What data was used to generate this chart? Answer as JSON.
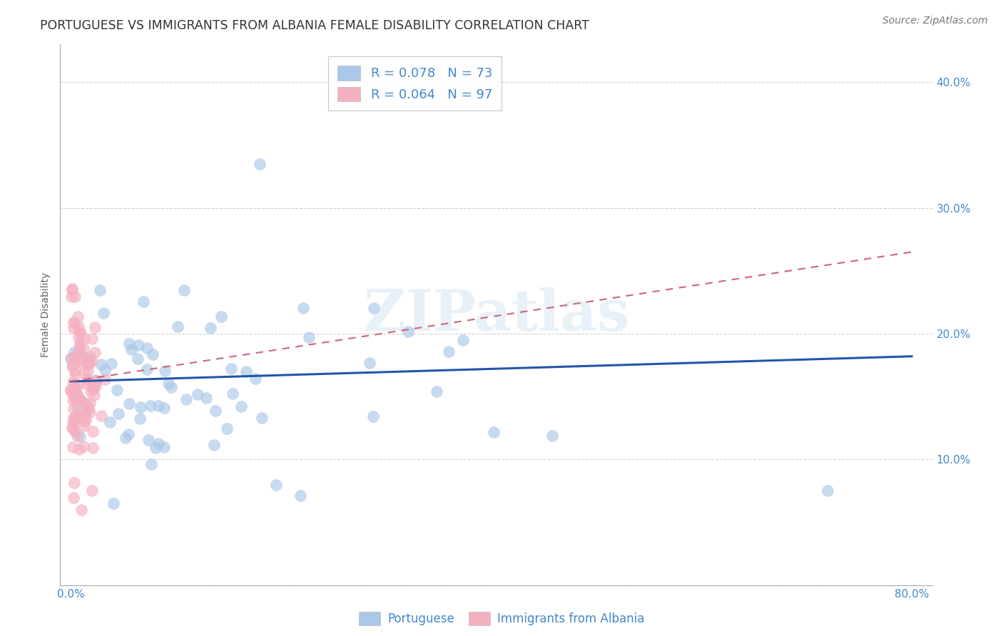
{
  "title": "PORTUGUESE VS IMMIGRANTS FROM ALBANIA FEMALE DISABILITY CORRELATION CHART",
  "source": "Source: ZipAtlas.com",
  "ylabel": "Female Disability",
  "watermark": "ZIPatlas",
  "xlim": [
    -0.01,
    0.82
  ],
  "ylim": [
    0.0,
    0.43
  ],
  "xticks": [
    0.0,
    0.2,
    0.4,
    0.6,
    0.8
  ],
  "yticks": [
    0.0,
    0.1,
    0.2,
    0.3,
    0.4
  ],
  "portuguese_color": "#aac8e8",
  "portuguese_edge": "#aac8e8",
  "portuguese_line_color": "#2255aa",
  "albania_color": "#f5b0c0",
  "albania_edge": "#f5b0c0",
  "albania_line_color": "#cc6677",
  "tick_color": "#4488cc",
  "R_portuguese": 0.078,
  "N_portuguese": 73,
  "R_albania": 0.064,
  "N_albania": 97,
  "title_fontsize": 12.5,
  "axis_label_fontsize": 10,
  "tick_fontsize": 11,
  "legend_fontsize": 13,
  "source_fontsize": 10,
  "background_color": "#ffffff",
  "grid_color": "#cccccc",
  "portuguese_line_y0": 0.162,
  "portuguese_line_y1": 0.182,
  "albania_line_y0": 0.162,
  "albania_line_y1": 0.265
}
